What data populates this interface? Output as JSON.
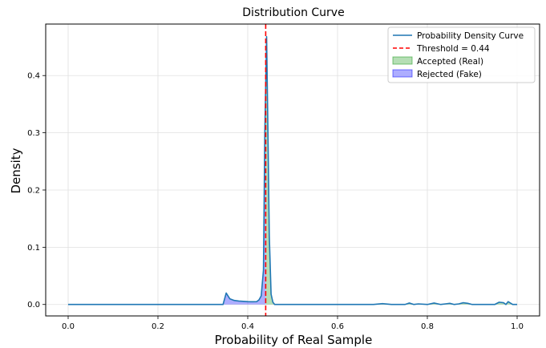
{
  "chart_data": {
    "type": "area",
    "title": "Distribution Curve",
    "xlabel": "Probability of Real Sample",
    "ylabel": "Density",
    "xlim": [
      -0.05,
      1.05
    ],
    "ylim": [
      -0.02,
      0.49
    ],
    "x_ticks": [
      0.0,
      0.2,
      0.4,
      0.6,
      0.8,
      1.0
    ],
    "x_tick_labels": [
      "0.0",
      "0.2",
      "0.4",
      "0.6",
      "0.8",
      "1.0"
    ],
    "y_ticks": [
      0.0,
      0.1,
      0.2,
      0.3,
      0.4
    ],
    "y_tick_labels": [
      "0.0",
      "0.1",
      "0.2",
      "0.3",
      "0.4"
    ],
    "grid": true,
    "threshold": 0.44,
    "legend_position": "top-right",
    "legend": [
      {
        "label": "Probability Density Curve",
        "kind": "line",
        "color": "#1f77b4"
      },
      {
        "label": "Threshold = 0.44",
        "kind": "dashed-line",
        "color": "#d62728"
      },
      {
        "label": "Accepted (Real)",
        "kind": "patch",
        "color": "#2ca02c"
      },
      {
        "label": "Rejected (Fake)",
        "kind": "patch",
        "color": "#0000ff"
      }
    ],
    "colors": {
      "curve": "#1f77b4",
      "threshold": "#ff0000",
      "accepted_fill": "rgba(44,160,44,0.35)",
      "rejected_fill": "rgba(0,0,255,0.32)"
    },
    "series": [
      {
        "name": "Probability Density Curve",
        "x": [
          0.0,
          0.1,
          0.2,
          0.3,
          0.345,
          0.352,
          0.36,
          0.37,
          0.38,
          0.39,
          0.4,
          0.41,
          0.42,
          0.425,
          0.43,
          0.435,
          0.438,
          0.442,
          0.445,
          0.448,
          0.452,
          0.456,
          0.46,
          0.5,
          0.6,
          0.68,
          0.7,
          0.72,
          0.75,
          0.76,
          0.77,
          0.78,
          0.8,
          0.815,
          0.83,
          0.84,
          0.85,
          0.86,
          0.87,
          0.88,
          0.89,
          0.9,
          0.92,
          0.95,
          0.96,
          0.97,
          0.975,
          0.98,
          0.99,
          1.0
        ],
        "y": [
          0.0,
          0.0,
          0.0,
          0.0,
          0.0,
          0.02,
          0.01,
          0.007,
          0.006,
          0.0055,
          0.005,
          0.0048,
          0.005,
          0.008,
          0.015,
          0.06,
          0.3,
          0.468,
          0.3,
          0.12,
          0.018,
          0.004,
          0.0,
          0.0,
          0.0,
          0.0,
          0.0015,
          0.0,
          0.0,
          0.0025,
          0.0,
          0.001,
          0.0,
          0.0025,
          0.0,
          0.001,
          0.002,
          0.0,
          0.001,
          0.003,
          0.002,
          0.0,
          0.0,
          0.0,
          0.004,
          0.003,
          0.0,
          0.005,
          0.0,
          0.0
        ]
      }
    ]
  }
}
